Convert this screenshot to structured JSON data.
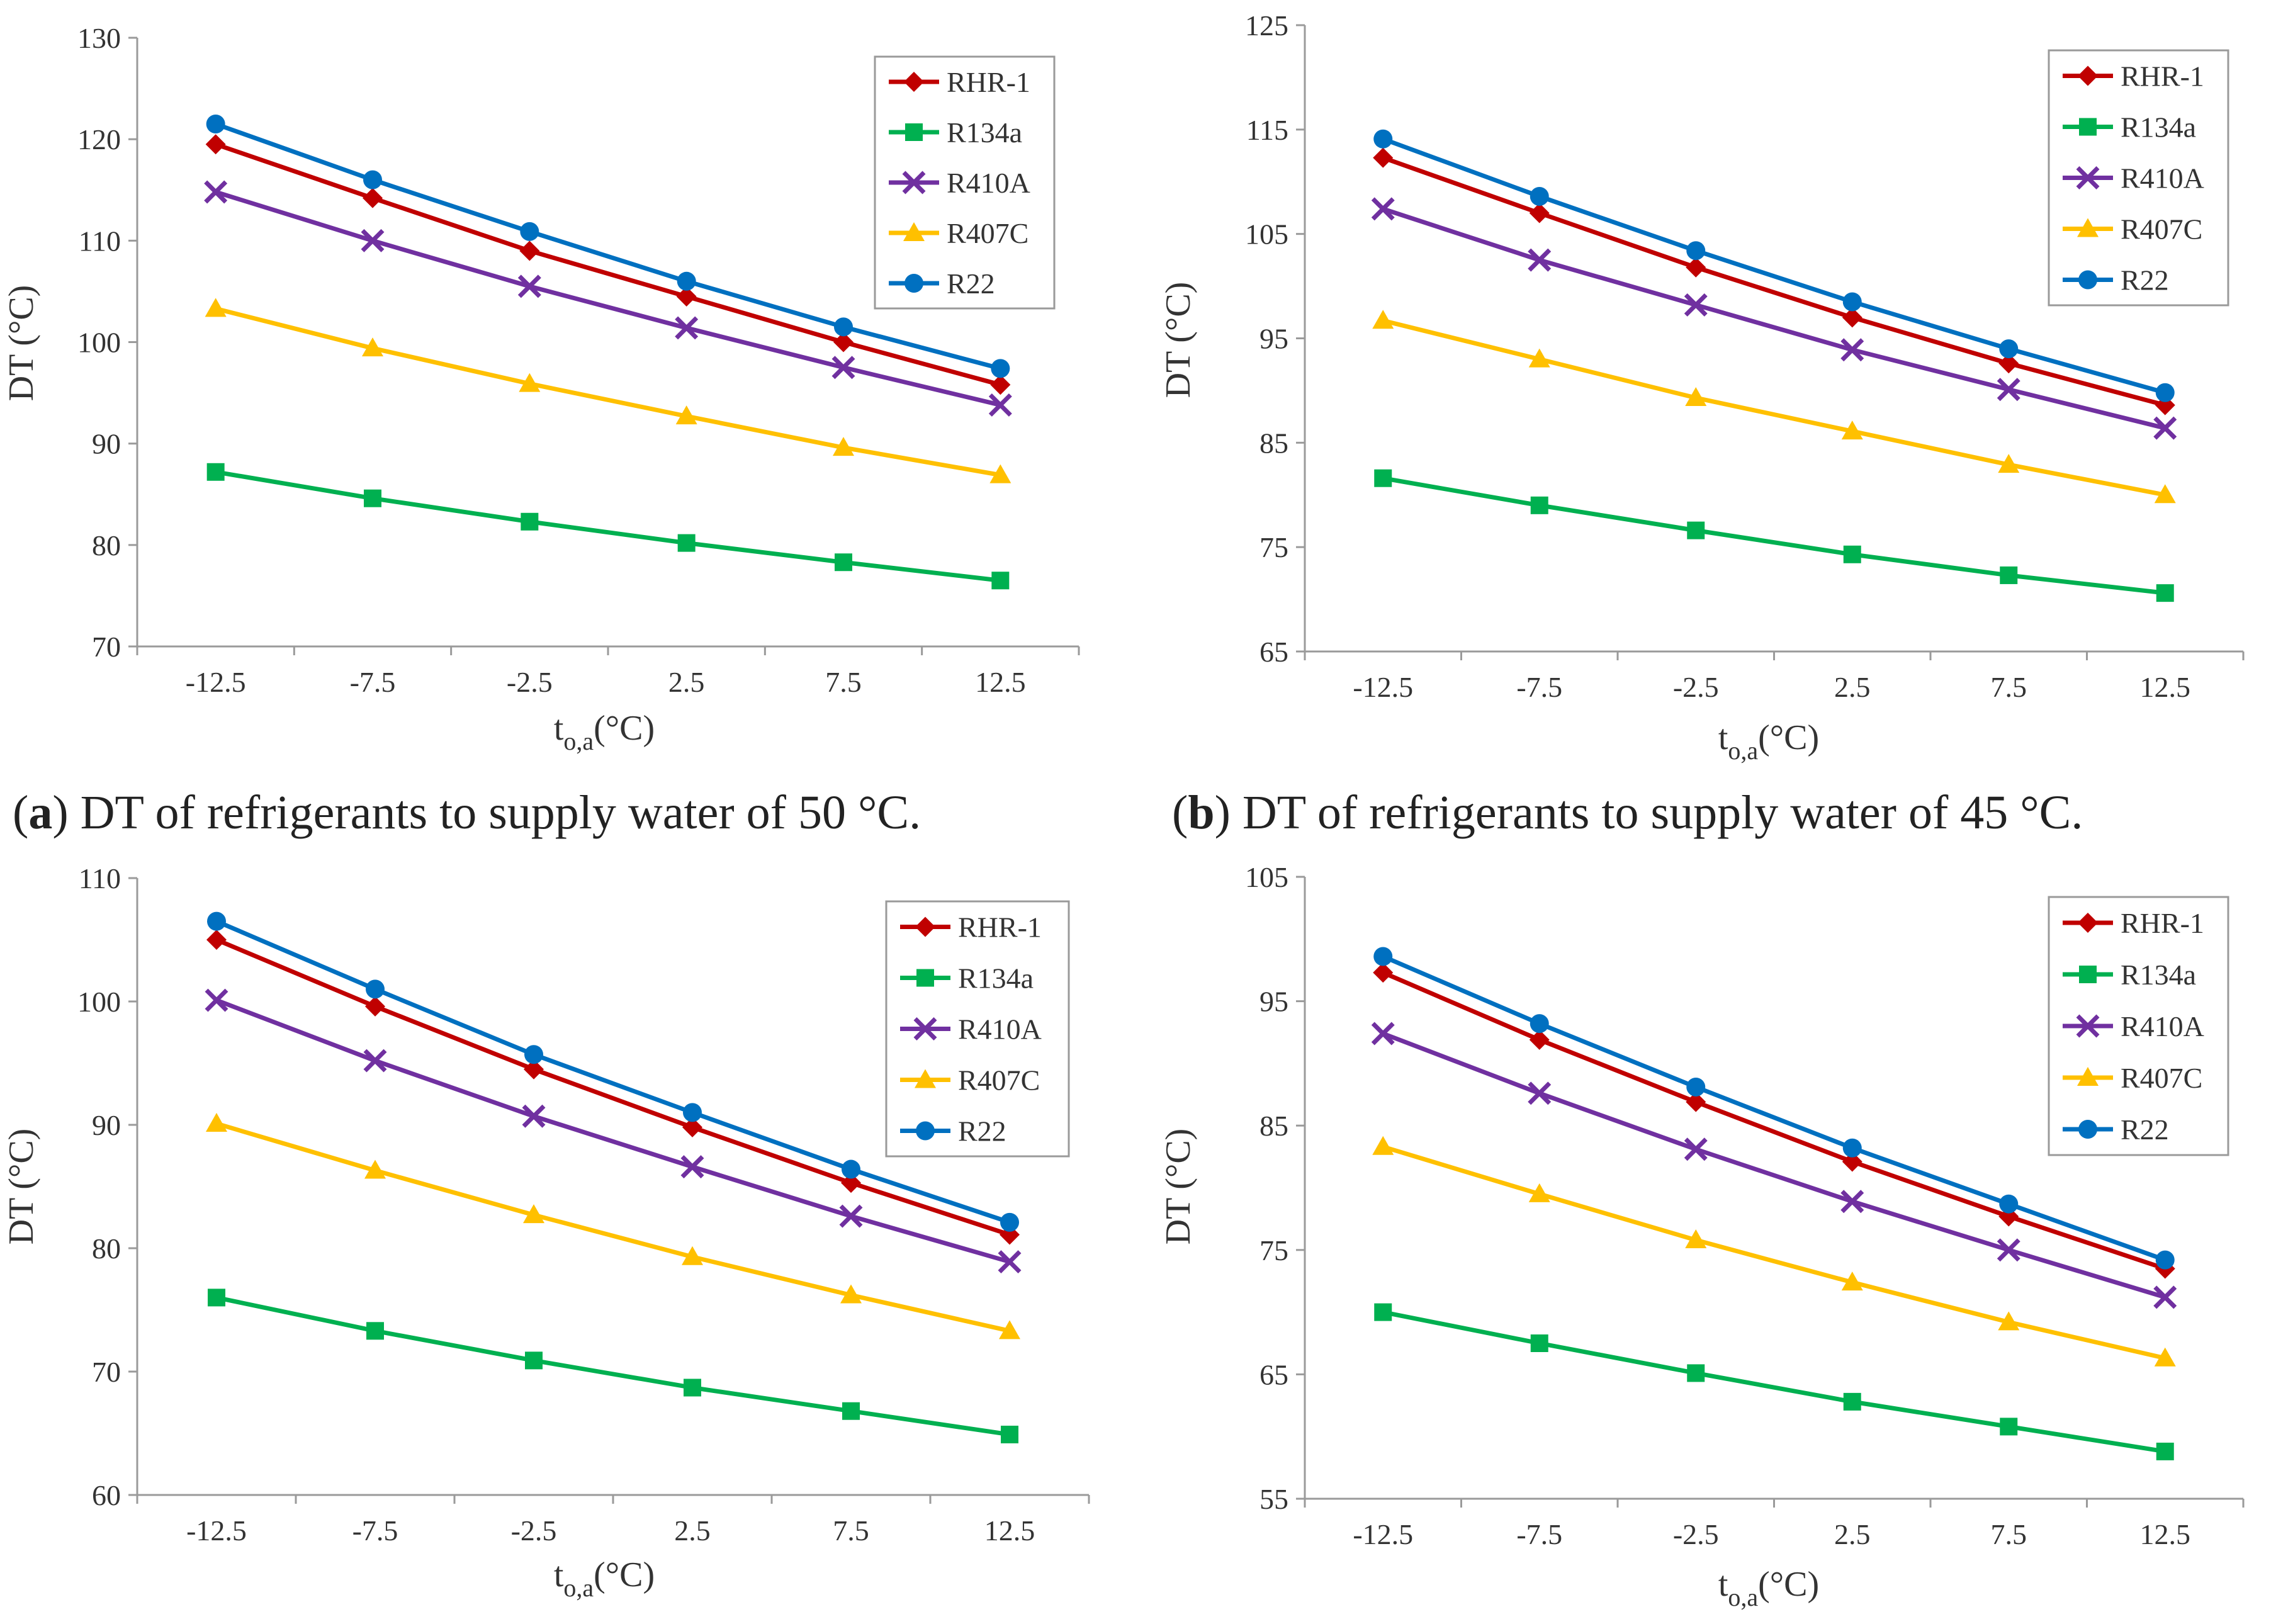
{
  "chart_data": [
    {
      "type": "line",
      "panel": "a",
      "caption": {
        "letter": "a",
        "text": ") DT of refrigerants to supply water of 50 °C."
      },
      "categories": [
        "-12.5",
        "-7.5",
        "-2.5",
        "2.5",
        "7.5",
        "12.5"
      ],
      "xlabel": {
        "main": "t",
        "sub": "o,a",
        "unit": "(°C)"
      },
      "ylabel": "DT (°C)",
      "ylim": [
        70,
        130
      ],
      "yticks": [
        "70",
        "80",
        "90",
        "100",
        "110",
        "120",
        "130"
      ],
      "legend_position": "top-right",
      "series": [
        {
          "name": "RHR-1",
          "marker": "diamond",
          "color": "#C00000",
          "values": [
            119.5,
            114.2,
            109.0,
            104.5,
            100.0,
            95.8
          ]
        },
        {
          "name": "R134a",
          "marker": "square",
          "color": "#00B050",
          "values": [
            87.2,
            84.6,
            82.3,
            80.2,
            78.3,
            76.5
          ]
        },
        {
          "name": "R410A",
          "marker": "x",
          "color": "#7030A0",
          "values": [
            114.8,
            110.0,
            105.5,
            101.4,
            97.5,
            93.8
          ]
        },
        {
          "name": "R407C",
          "marker": "triangle",
          "color": "#FFC000",
          "values": [
            103.3,
            99.4,
            95.9,
            92.7,
            89.6,
            86.9
          ]
        },
        {
          "name": "R22",
          "marker": "circle",
          "color": "#0070C0",
          "values": [
            121.5,
            116.0,
            110.9,
            106.0,
            101.5,
            97.4
          ]
        }
      ]
    },
    {
      "type": "line",
      "panel": "b",
      "caption": {
        "letter": "b",
        "text": ") DT of refrigerants to supply water of 45 °C."
      },
      "categories": [
        "-12.5",
        "-7.5",
        "-2.5",
        "2.5",
        "7.5",
        "12.5"
      ],
      "xlabel": {
        "main": "t",
        "sub": "o,a",
        "unit": "(°C)"
      },
      "ylabel": "DT (°C)",
      "ylim": [
        65,
        125
      ],
      "yticks": [
        "65",
        "75",
        "85",
        "95",
        "105",
        "115",
        "125"
      ],
      "legend_position": "top-right",
      "series": [
        {
          "name": "RHR-1",
          "marker": "diamond",
          "color": "#C00000",
          "values": [
            112.3,
            107.0,
            101.8,
            97.0,
            92.6,
            88.6
          ]
        },
        {
          "name": "R134a",
          "marker": "square",
          "color": "#00B050",
          "values": [
            81.6,
            79.0,
            76.6,
            74.3,
            72.3,
            70.6
          ]
        },
        {
          "name": "R410A",
          "marker": "x",
          "color": "#7030A0",
          "values": [
            107.4,
            102.5,
            98.2,
            93.9,
            90.1,
            86.4
          ]
        },
        {
          "name": "R407C",
          "marker": "triangle",
          "color": "#FFC000",
          "values": [
            96.7,
            93.0,
            89.3,
            86.1,
            82.9,
            80.0
          ]
        },
        {
          "name": "R22",
          "marker": "circle",
          "color": "#0070C0",
          "values": [
            114.1,
            108.6,
            103.4,
            98.5,
            94.0,
            89.8
          ]
        }
      ]
    },
    {
      "type": "line",
      "panel": "c",
      "categories": [
        "-12.5",
        "-7.5",
        "-2.5",
        "2.5",
        "7.5",
        "12.5"
      ],
      "xlabel": {
        "main": "t",
        "sub": "o,a",
        "unit": "(°C)"
      },
      "ylabel": "DT (°C)",
      "ylim": [
        60,
        110
      ],
      "yticks": [
        "60",
        "70",
        "80",
        "90",
        "100",
        "110"
      ],
      "legend_position": "top-right",
      "series": [
        {
          "name": "RHR-1",
          "marker": "diamond",
          "color": "#C00000",
          "values": [
            105.0,
            99.6,
            94.5,
            89.8,
            85.3,
            81.1
          ]
        },
        {
          "name": "R134a",
          "marker": "square",
          "color": "#00B050",
          "values": [
            76.0,
            73.3,
            70.9,
            68.7,
            66.8,
            64.9
          ]
        },
        {
          "name": "R410A",
          "marker": "x",
          "color": "#7030A0",
          "values": [
            100.1,
            95.2,
            90.7,
            86.6,
            82.6,
            78.9
          ]
        },
        {
          "name": "R407C",
          "marker": "triangle",
          "color": "#FFC000",
          "values": [
            90.1,
            86.3,
            82.7,
            79.3,
            76.2,
            73.3
          ]
        },
        {
          "name": "R22",
          "marker": "circle",
          "color": "#0070C0",
          "values": [
            106.5,
            101.0,
            95.7,
            91.0,
            86.4,
            82.1
          ]
        }
      ]
    },
    {
      "type": "line",
      "panel": "d",
      "categories": [
        "-12.5",
        "-7.5",
        "-2.5",
        "2.5",
        "7.5",
        "12.5"
      ],
      "xlabel": {
        "main": "t",
        "sub": "o,a",
        "unit": "(°C)"
      },
      "ylabel": "DT (°C)",
      "ylim": [
        55,
        105
      ],
      "yticks": [
        "55",
        "65",
        "75",
        "85",
        "95",
        "105"
      ],
      "legend_position": "top-right",
      "series": [
        {
          "name": "RHR-1",
          "marker": "diamond",
          "color": "#C00000",
          "values": [
            97.3,
            91.9,
            86.9,
            82.1,
            77.7,
            73.5
          ]
        },
        {
          "name": "R134a",
          "marker": "square",
          "color": "#00B050",
          "values": [
            70.0,
            67.5,
            65.1,
            62.8,
            60.8,
            58.8
          ]
        },
        {
          "name": "R410A",
          "marker": "x",
          "color": "#7030A0",
          "values": [
            92.4,
            87.6,
            83.1,
            78.9,
            75.0,
            71.2
          ]
        },
        {
          "name": "R407C",
          "marker": "triangle",
          "color": "#FFC000",
          "values": [
            83.3,
            79.5,
            75.8,
            72.4,
            69.2,
            66.3
          ]
        },
        {
          "name": "R22",
          "marker": "circle",
          "color": "#0070C0",
          "values": [
            98.6,
            93.2,
            88.1,
            83.2,
            78.7,
            74.2
          ]
        }
      ]
    }
  ]
}
